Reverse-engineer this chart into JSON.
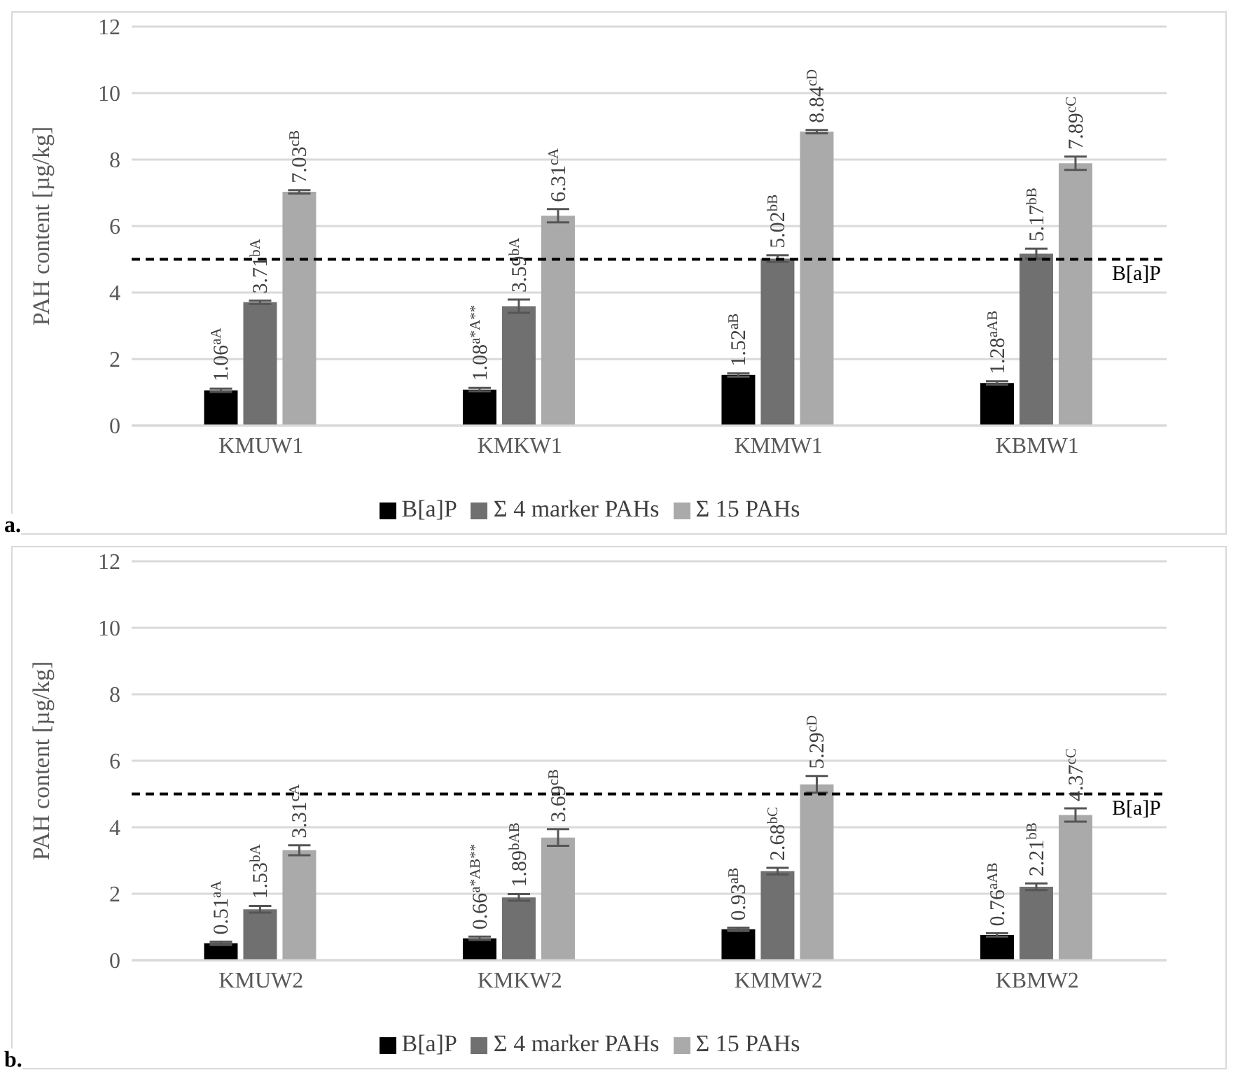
{
  "chart_data": [
    {
      "type": "bar",
      "ylabel": "PAH content [µg/kg]",
      "categories": [
        "KMUW1",
        "KMKW1",
        "KMMW1",
        "KBMW1"
      ],
      "ylim": [
        0,
        12
      ],
      "yticks": [
        0,
        2,
        4,
        6,
        8,
        10,
        12
      ],
      "grid": "y",
      "legend": "bottom",
      "annotations": [
        "a."
      ],
      "ref_lines": [
        {
          "axis": "y",
          "value": 5,
          "label": "B[a]P",
          "color": "#000000",
          "line_style": "dashed"
        }
      ],
      "series": [
        {
          "name": "B[a]P",
          "color": "#000000",
          "values": [
            1.06,
            1.08,
            1.52,
            1.28
          ],
          "errors": [
            0.05,
            0.05,
            0.05,
            0.05
          ],
          "value_labels": [
            "1.06$^{aA}$",
            "1.08$^{a*A**}$",
            "1.52$^{aB}$",
            "1.28$^{aAB}$"
          ]
        },
        {
          "name": "Σ 4 marker PAHs",
          "color": "#707070",
          "values": [
            3.71,
            3.59,
            5.02,
            5.17
          ],
          "errors": [
            0.05,
            0.2,
            0.1,
            0.15
          ],
          "value_labels": [
            "3.71$^{bA}$",
            "3.59$^{bA}$",
            "5.02$^{bB}$",
            "5.17$^{bB}$"
          ]
        },
        {
          "name": "Σ 15 PAHs",
          "color": "#aaaaaa",
          "values": [
            7.03,
            6.31,
            8.84,
            7.89
          ],
          "errors": [
            0.05,
            0.2,
            0.05,
            0.2
          ],
          "value_labels": [
            "7.03$^{cB}$",
            "6.31$^{cA}$",
            "8.84$^{cD}$",
            "7.89$^{cC}$"
          ]
        }
      ]
    },
    {
      "type": "bar",
      "ylabel": "PAH content [µg/kg]",
      "categories": [
        "KMUW2",
        "KMKW2",
        "KMMW2",
        "KBMW2"
      ],
      "ylim": [
        0,
        12
      ],
      "yticks": [
        0,
        2,
        4,
        6,
        8,
        10,
        12
      ],
      "grid": "y",
      "legend": "bottom",
      "annotations": [
        "b."
      ],
      "ref_lines": [
        {
          "axis": "y",
          "value": 5,
          "label": "B[a]P",
          "color": "#000000",
          "line_style": "dashed"
        }
      ],
      "series": [
        {
          "name": "B[a]P",
          "color": "#000000",
          "values": [
            0.51,
            0.66,
            0.93,
            0.76
          ],
          "errors": [
            0.05,
            0.05,
            0.05,
            0.05
          ],
          "value_labels": [
            "0.51$^{aA}$",
            "0.66$^{a*AB**}$",
            "0.93$^{aB}$",
            "0.76$^{aAB}$"
          ]
        },
        {
          "name": "Σ 4 marker PAHs",
          "color": "#707070",
          "values": [
            1.53,
            1.89,
            2.68,
            2.21
          ],
          "errors": [
            0.1,
            0.1,
            0.1,
            0.1
          ],
          "value_labels": [
            "1.53$^{bA}$",
            "1.89$^{bAB}$",
            "2.68$^{bC}$",
            "2.21$^{bB}$"
          ]
        },
        {
          "name": "Σ 15 PAHs",
          "color": "#aaaaaa",
          "values": [
            3.31,
            3.69,
            5.29,
            4.37
          ],
          "errors": [
            0.15,
            0.25,
            0.25,
            0.2
          ],
          "value_labels": [
            "3.31$^{cA}$",
            "3.69$^{cB}$",
            "5.29$^{cD}$",
            "4.37$^{cC}$"
          ]
        }
      ]
    }
  ]
}
